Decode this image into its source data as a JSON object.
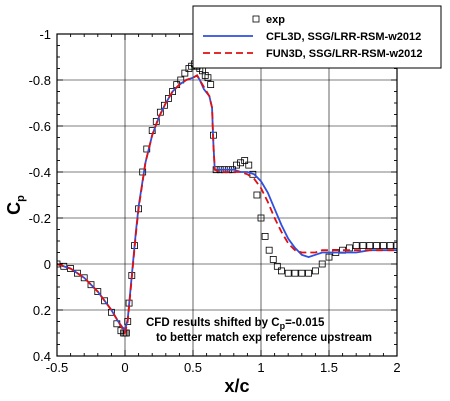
{
  "chart_data": {
    "type": "line",
    "xlabel": "x/c",
    "ylabel": "C",
    "ylabel_subscript": "p",
    "xlim": [
      -0.5,
      2.0
    ],
    "ylim": [
      0.4,
      -1.0
    ],
    "y_inverted": true,
    "grid": true,
    "legend_position": "top-right",
    "x_ticks": [
      -0.5,
      0,
      0.5,
      1,
      1.5,
      2
    ],
    "x_tick_labels": [
      "-0.5",
      "0",
      "0.5",
      "1",
      "1.5",
      "2"
    ],
    "y_ticks": [
      -1,
      -0.8,
      -0.6,
      -0.4,
      -0.2,
      0,
      0.2,
      0.4
    ],
    "y_tick_labels": [
      "-1",
      "-0.8",
      "-0.6",
      "-0.4",
      "-0.2",
      "0",
      "0.2",
      "0.4"
    ],
    "series": [
      {
        "name": "exp",
        "kind": "marker",
        "color": "#000000",
        "x": [
          -0.5,
          -0.45,
          -0.4,
          -0.35,
          -0.3,
          -0.25,
          -0.2,
          -0.15,
          -0.1,
          -0.06,
          -0.03,
          -0.01,
          0.0,
          0.01,
          0.02,
          0.03,
          0.05,
          0.07,
          0.1,
          0.13,
          0.16,
          0.2,
          0.23,
          0.26,
          0.29,
          0.32,
          0.35,
          0.38,
          0.41,
          0.44,
          0.47,
          0.49,
          0.51,
          0.53,
          0.55,
          0.57,
          0.59,
          0.61,
          0.63,
          0.65,
          0.67,
          0.7,
          0.73,
          0.76,
          0.79,
          0.82,
          0.85,
          0.88,
          0.91,
          0.94,
          0.97,
          1.0,
          1.03,
          1.06,
          1.09,
          1.12,
          1.15,
          1.2,
          1.25,
          1.3,
          1.35,
          1.4,
          1.45,
          1.5,
          1.55,
          1.6,
          1.65,
          1.7,
          1.75,
          1.8,
          1.85,
          1.9,
          1.95,
          2.0
        ],
        "y": [
          0.0,
          0.01,
          0.02,
          0.04,
          0.06,
          0.09,
          0.12,
          0.16,
          0.21,
          0.26,
          0.29,
          0.3,
          0.3,
          0.3,
          0.25,
          0.17,
          0.05,
          -0.08,
          -0.24,
          -0.4,
          -0.5,
          -0.58,
          -0.62,
          -0.66,
          -0.69,
          -0.72,
          -0.75,
          -0.78,
          -0.8,
          -0.83,
          -0.85,
          -0.86,
          -0.87,
          -0.86,
          -0.85,
          -0.84,
          -0.82,
          -0.81,
          -0.78,
          -0.56,
          -0.41,
          -0.41,
          -0.41,
          -0.41,
          -0.41,
          -0.43,
          -0.44,
          -0.45,
          -0.43,
          -0.39,
          -0.3,
          -0.2,
          -0.12,
          -0.06,
          -0.02,
          0.01,
          0.03,
          0.04,
          0.04,
          0.04,
          0.04,
          0.03,
          0.0,
          -0.03,
          -0.05,
          -0.06,
          -0.07,
          -0.08,
          -0.08,
          -0.08,
          -0.08,
          -0.08,
          -0.08,
          -0.08
        ]
      },
      {
        "name": "CFL3D, SSG/LRR-RSM-w2012",
        "kind": "line",
        "color": "#2e4fe0",
        "dash": "solid",
        "x": [
          -0.5,
          -0.4,
          -0.3,
          -0.2,
          -0.1,
          -0.05,
          0.0,
          0.02,
          0.05,
          0.08,
          0.1,
          0.15,
          0.2,
          0.25,
          0.3,
          0.35,
          0.4,
          0.45,
          0.5,
          0.53,
          0.55,
          0.58,
          0.62,
          0.64,
          0.65,
          0.66,
          0.7,
          0.75,
          0.8,
          0.85,
          0.9,
          0.95,
          1.0,
          1.05,
          1.1,
          1.15,
          1.2,
          1.25,
          1.3,
          1.35,
          1.4,
          1.45,
          1.5,
          1.6,
          1.7,
          1.8,
          1.9,
          2.0
        ],
        "y": [
          0.0,
          0.02,
          0.06,
          0.12,
          0.2,
          0.25,
          0.29,
          0.24,
          0.05,
          -0.14,
          -0.25,
          -0.44,
          -0.56,
          -0.64,
          -0.7,
          -0.75,
          -0.78,
          -0.8,
          -0.81,
          -0.82,
          -0.8,
          -0.76,
          -0.73,
          -0.68,
          -0.52,
          -0.41,
          -0.41,
          -0.41,
          -0.41,
          -0.4,
          -0.4,
          -0.39,
          -0.36,
          -0.31,
          -0.24,
          -0.17,
          -0.11,
          -0.07,
          -0.04,
          -0.03,
          -0.04,
          -0.05,
          -0.05,
          -0.05,
          -0.05,
          -0.06,
          -0.06,
          -0.06
        ]
      },
      {
        "name": "FUN3D, SSG/LRR-RSM-w2012",
        "kind": "line",
        "color": "#e01010",
        "dash": "dashed",
        "x": [
          -0.5,
          -0.4,
          -0.3,
          -0.2,
          -0.1,
          -0.05,
          0.0,
          0.02,
          0.05,
          0.08,
          0.1,
          0.15,
          0.2,
          0.25,
          0.3,
          0.35,
          0.4,
          0.45,
          0.5,
          0.53,
          0.55,
          0.58,
          0.62,
          0.64,
          0.65,
          0.66,
          0.7,
          0.75,
          0.8,
          0.85,
          0.9,
          0.95,
          1.0,
          1.05,
          1.1,
          1.15,
          1.2,
          1.25,
          1.3,
          1.35,
          1.4,
          1.45,
          1.5,
          1.6,
          1.7,
          1.8,
          1.9,
          2.0
        ],
        "y": [
          0.0,
          0.02,
          0.06,
          0.12,
          0.2,
          0.25,
          0.3,
          0.25,
          0.06,
          -0.13,
          -0.24,
          -0.44,
          -0.56,
          -0.64,
          -0.7,
          -0.75,
          -0.78,
          -0.8,
          -0.81,
          -0.82,
          -0.8,
          -0.77,
          -0.73,
          -0.68,
          -0.52,
          -0.41,
          -0.4,
          -0.4,
          -0.4,
          -0.4,
          -0.39,
          -0.37,
          -0.33,
          -0.27,
          -0.2,
          -0.14,
          -0.09,
          -0.06,
          -0.05,
          -0.05,
          -0.05,
          -0.06,
          -0.06,
          -0.06,
          -0.06,
          -0.06,
          -0.06,
          -0.06
        ]
      }
    ],
    "annotation": {
      "line1_prefix": "CFD results shifted by C",
      "line1_sub": "p",
      "line1_suffix": "=-0.015",
      "line2": "to better match exp reference upstream"
    }
  }
}
